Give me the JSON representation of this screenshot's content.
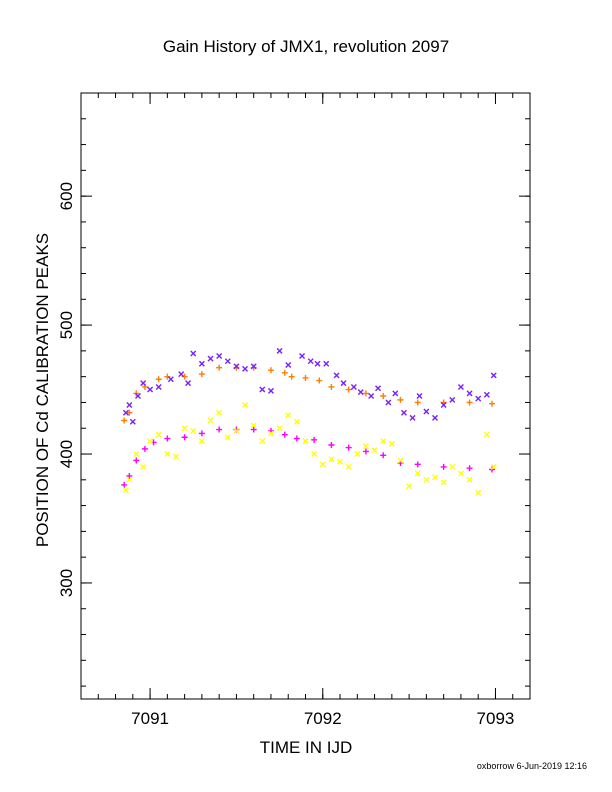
{
  "chart_data": {
    "type": "scatter",
    "title": "Gain History of JMX1, revolution 2097",
    "xlabel": "TIME IN IJD",
    "ylabel": "POSITION OF Cd CALIBRATION PEAKS",
    "xlim": [
      7090.6,
      7093.2
    ],
    "ylim": [
      210,
      680
    ],
    "x_ticks": [
      7091,
      7092,
      7093
    ],
    "x_tick_labels": [
      "7091",
      "7092",
      "7093"
    ],
    "y_ticks": [
      300,
      400,
      500,
      600
    ],
    "y_tick_labels": [
      "300",
      "400",
      "500",
      "600"
    ],
    "x_minor_step": 0.1,
    "y_minor_step": 20,
    "grid": false,
    "legend": "none",
    "series": [
      {
        "color": "#ff7f00",
        "marker": "plus",
        "points": [
          [
            7090.85,
            426
          ],
          [
            7090.88,
            432
          ],
          [
            7090.92,
            447
          ],
          [
            7090.97,
            452
          ],
          [
            7091.05,
            458
          ],
          [
            7091.1,
            460
          ],
          [
            7091.2,
            460
          ],
          [
            7091.3,
            462
          ],
          [
            7091.4,
            467
          ],
          [
            7091.5,
            467
          ],
          [
            7091.6,
            467
          ],
          [
            7091.7,
            465
          ],
          [
            7091.78,
            463
          ],
          [
            7091.82,
            460
          ],
          [
            7091.9,
            459
          ],
          [
            7091.98,
            457
          ],
          [
            7092.05,
            452
          ],
          [
            7092.15,
            450
          ],
          [
            7092.25,
            447
          ],
          [
            7092.35,
            445
          ],
          [
            7092.45,
            442
          ],
          [
            7092.55,
            440
          ],
          [
            7092.7,
            440
          ],
          [
            7092.85,
            440
          ],
          [
            7092.98,
            439
          ]
        ]
      },
      {
        "color": "#ff00ff",
        "marker": "plus",
        "points": [
          [
            7090.85,
            376
          ],
          [
            7090.88,
            383
          ],
          [
            7090.92,
            395
          ],
          [
            7090.97,
            404
          ],
          [
            7091.02,
            409
          ],
          [
            7091.1,
            412
          ],
          [
            7091.2,
            413
          ],
          [
            7091.3,
            416
          ],
          [
            7091.4,
            419
          ],
          [
            7091.5,
            419
          ],
          [
            7091.6,
            419
          ],
          [
            7091.7,
            418
          ],
          [
            7091.78,
            415
          ],
          [
            7091.85,
            412
          ],
          [
            7091.95,
            411
          ],
          [
            7092.05,
            407
          ],
          [
            7092.15,
            405
          ],
          [
            7092.25,
            402
          ],
          [
            7092.35,
            399
          ],
          [
            7092.45,
            393
          ],
          [
            7092.55,
            392
          ],
          [
            7092.7,
            390
          ],
          [
            7092.85,
            389
          ],
          [
            7092.98,
            388
          ]
        ]
      },
      {
        "color": "#7a1fff",
        "marker": "cross",
        "points": [
          [
            7090.86,
            432
          ],
          [
            7090.88,
            438
          ],
          [
            7090.9,
            425
          ],
          [
            7090.93,
            445
          ],
          [
            7090.96,
            455
          ],
          [
            7091.0,
            450
          ],
          [
            7091.05,
            452
          ],
          [
            7091.12,
            458
          ],
          [
            7091.18,
            462
          ],
          [
            7091.22,
            455
          ],
          [
            7091.25,
            478
          ],
          [
            7091.3,
            470
          ],
          [
            7091.35,
            474
          ],
          [
            7091.4,
            476
          ],
          [
            7091.45,
            472
          ],
          [
            7091.5,
            468
          ],
          [
            7091.55,
            466
          ],
          [
            7091.6,
            468
          ],
          [
            7091.65,
            450
          ],
          [
            7091.7,
            449
          ],
          [
            7091.75,
            480
          ],
          [
            7091.8,
            469
          ],
          [
            7091.88,
            476
          ],
          [
            7091.93,
            472
          ],
          [
            7091.97,
            470
          ],
          [
            7092.02,
            470
          ],
          [
            7092.08,
            461
          ],
          [
            7092.12,
            455
          ],
          [
            7092.18,
            452
          ],
          [
            7092.22,
            448
          ],
          [
            7092.28,
            445
          ],
          [
            7092.32,
            451
          ],
          [
            7092.38,
            440
          ],
          [
            7092.42,
            447
          ],
          [
            7092.47,
            432
          ],
          [
            7092.52,
            428
          ],
          [
            7092.56,
            445
          ],
          [
            7092.6,
            433
          ],
          [
            7092.65,
            428
          ],
          [
            7092.7,
            438
          ],
          [
            7092.75,
            442
          ],
          [
            7092.8,
            452
          ],
          [
            7092.85,
            447
          ],
          [
            7092.9,
            443
          ],
          [
            7092.95,
            446
          ],
          [
            7092.99,
            461
          ]
        ]
      },
      {
        "color": "#ffff00",
        "marker": "cross",
        "points": [
          [
            7090.86,
            372
          ],
          [
            7090.88,
            380
          ],
          [
            7090.92,
            400
          ],
          [
            7090.96,
            390
          ],
          [
            7091.0,
            410
          ],
          [
            7091.05,
            415
          ],
          [
            7091.1,
            400
          ],
          [
            7091.15,
            398
          ],
          [
            7091.2,
            420
          ],
          [
            7091.25,
            418
          ],
          [
            7091.3,
            410
          ],
          [
            7091.35,
            426
          ],
          [
            7091.4,
            432
          ],
          [
            7091.45,
            413
          ],
          [
            7091.5,
            418
          ],
          [
            7091.55,
            438
          ],
          [
            7091.6,
            422
          ],
          [
            7091.65,
            410
          ],
          [
            7091.7,
            416
          ],
          [
            7091.75,
            420
          ],
          [
            7091.8,
            430
          ],
          [
            7091.85,
            425
          ],
          [
            7091.9,
            410
          ],
          [
            7091.95,
            400
          ],
          [
            7092.0,
            392
          ],
          [
            7092.05,
            396
          ],
          [
            7092.1,
            394
          ],
          [
            7092.15,
            390
          ],
          [
            7092.2,
            400
          ],
          [
            7092.25,
            406
          ],
          [
            7092.3,
            403
          ],
          [
            7092.35,
            410
          ],
          [
            7092.4,
            408
          ],
          [
            7092.45,
            395
          ],
          [
            7092.5,
            375
          ],
          [
            7092.55,
            385
          ],
          [
            7092.6,
            380
          ],
          [
            7092.65,
            382
          ],
          [
            7092.7,
            378
          ],
          [
            7092.75,
            390
          ],
          [
            7092.8,
            385
          ],
          [
            7092.85,
            380
          ],
          [
            7092.9,
            370
          ],
          [
            7092.95,
            415
          ],
          [
            7092.99,
            390
          ]
        ]
      }
    ]
  },
  "footer": "oxborrow  6-Jun-2019 12:16"
}
